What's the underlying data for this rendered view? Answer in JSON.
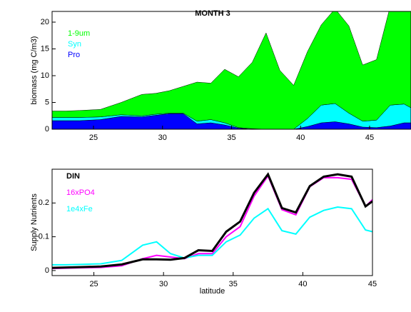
{
  "chart_data": [
    {
      "type": "area",
      "title": "MONTH 3",
      "ylabel": "biomass (mg C/m3)",
      "x": [
        22,
        23,
        24,
        25.5,
        27,
        28.5,
        29.5,
        30.5,
        31.5,
        32.5,
        33.5,
        34.5,
        35.5,
        36.5,
        37.5,
        38.5,
        39.5,
        40.5,
        41.5,
        42.5,
        43.5,
        44.5,
        45.5,
        46.5,
        47.5,
        48
      ],
      "series": [
        {
          "name": "Pro",
          "color": "#0000ff",
          "values": [
            1.6,
            1.6,
            1.6,
            1.8,
            2.4,
            2.3,
            2.6,
            2.9,
            2.9,
            1.0,
            1.2,
            0.8,
            0.2,
            0,
            0,
            0,
            0,
            0.5,
            1.2,
            1.4,
            1.0,
            0.4,
            0.3,
            0.6,
            1.2,
            1.2
          ]
        },
        {
          "name": "Syn",
          "color": "#00ffff",
          "values": [
            0.6,
            0.6,
            0.6,
            0.5,
            0.3,
            0.2,
            0.2,
            0.1,
            0.1,
            0.5,
            0.6,
            0.4,
            0.1,
            0.1,
            0,
            0,
            0,
            1.5,
            3.3,
            3.4,
            2.0,
            1.1,
            1.4,
            3.9,
            3.5,
            2.8
          ]
        },
        {
          "name": "1-9um",
          "color": "#00ff00",
          "values": [
            1.2,
            1.2,
            1.3,
            1.4,
            2.3,
            4.0,
            3.9,
            4.2,
            5.0,
            7.3,
            6.8,
            10.0,
            9.5,
            12.4,
            18,
            11,
            8.2,
            12.5,
            15,
            17.7,
            16.3,
            10.5,
            11.3,
            18.5,
            23.3,
            24
          ]
        }
      ],
      "xlim": [
        22,
        48
      ],
      "xticks": [
        25,
        30,
        35,
        40,
        45
      ],
      "ylim": [
        0,
        22
      ],
      "yticks": [
        0,
        5,
        10,
        15,
        20
      ]
    },
    {
      "type": "line",
      "ylabel": "Supply Nutrients",
      "xlabel": "latitude",
      "x": [
        22,
        23,
        24,
        25.5,
        27,
        28.5,
        29.5,
        30.5,
        31.5,
        32.5,
        33.5,
        34.5,
        35.5,
        36.5,
        37.5,
        38.5,
        39.5,
        40.5,
        41.5,
        42.5,
        43.5,
        44.5,
        45
      ],
      "series": [
        {
          "name": "DIN",
          "color": "#000000",
          "values": [
            0.008,
            0.009,
            0.01,
            0.012,
            0.018,
            0.033,
            0.033,
            0.032,
            0.037,
            0.06,
            0.058,
            0.115,
            0.145,
            0.23,
            0.285,
            0.185,
            0.172,
            0.25,
            0.278,
            0.285,
            0.278,
            0.19,
            0.205
          ]
        },
        {
          "name": "16xPO4",
          "color": "#ff00ff",
          "values": [
            0.006,
            0.007,
            0.008,
            0.009,
            0.014,
            0.035,
            0.045,
            0.04,
            0.035,
            0.05,
            0.05,
            0.1,
            0.13,
            0.22,
            0.28,
            0.18,
            0.165,
            0.248,
            0.275,
            0.275,
            0.27,
            0.19,
            0.21
          ]
        },
        {
          "name": "1e4xFe",
          "color": "#00ffff",
          "values": [
            0.017,
            0.017,
            0.018,
            0.02,
            0.03,
            0.075,
            0.085,
            0.05,
            0.037,
            0.045,
            0.045,
            0.085,
            0.105,
            0.155,
            0.183,
            0.118,
            0.108,
            0.158,
            0.178,
            0.188,
            0.183,
            0.12,
            0.115
          ]
        }
      ],
      "xlim": [
        22,
        45
      ],
      "xticks": [
        25,
        30,
        35,
        40,
        45
      ],
      "ylim": [
        -0.015,
        0.3
      ],
      "yticks": [
        0,
        0.1,
        0.2
      ]
    }
  ]
}
